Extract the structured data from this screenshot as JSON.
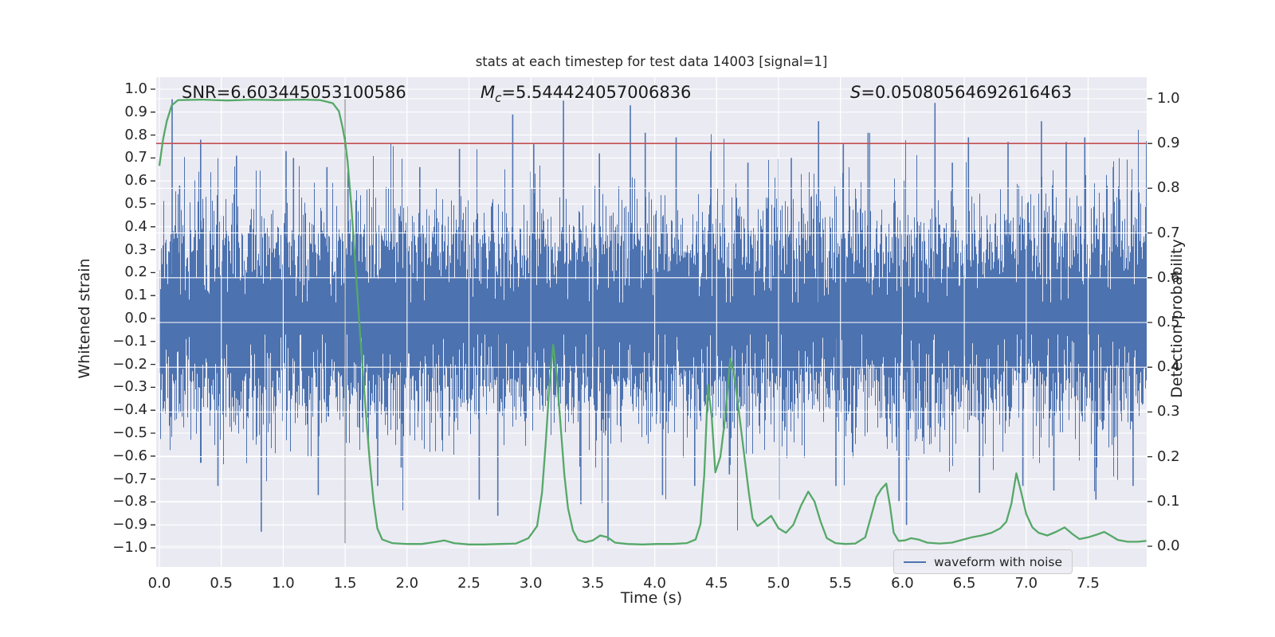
{
  "title": "stats at each timestep for test data 14003 [signal=1]",
  "annotations": {
    "snr": {
      "prefix": "SNR",
      "value": "=6.603445053100586"
    },
    "mc": {
      "prefix": "M",
      "sub": "c",
      "value": "=5.544424057006836"
    },
    "s": {
      "prefix": "S",
      "value": "=0.05080564692616463"
    }
  },
  "axes": {
    "xlabel": "Time (s)",
    "ylabel_left": "Whitened strain",
    "ylabel_right": "Detection probability",
    "xticks": [
      "0.0",
      "0.5",
      "1.0",
      "1.5",
      "2.0",
      "2.5",
      "3.0",
      "3.5",
      "4.0",
      "4.5",
      "5.0",
      "5.5",
      "6.0",
      "6.5",
      "7.0",
      "7.5"
    ],
    "yticks_left": [
      "1.0",
      "0.9",
      "0.8",
      "0.7",
      "0.6",
      "0.5",
      "0.4",
      "0.3",
      "0.2",
      "0.1",
      "0.0",
      "−0.1",
      "−0.2",
      "−0.3",
      "−0.4",
      "−0.5",
      "−0.6",
      "−0.7",
      "−0.8",
      "−0.9",
      "−1.0"
    ],
    "yticks_right": [
      "1.0",
      "0.9",
      "0.8",
      "0.7",
      "0.6",
      "0.5",
      "0.4",
      "0.3",
      "0.2",
      "0.1",
      "0.0"
    ]
  },
  "legend": {
    "label": "waveform with noise"
  },
  "colors": {
    "waveform": "#4c72b0",
    "probability": "#55a868",
    "threshold": "#c44e52",
    "event_marker": "#000000",
    "plot_bg": "#eaeaf2",
    "grid": "#ffffff",
    "text": "#262626"
  },
  "chart_data": {
    "type": "line",
    "title": "stats at each timestep for test data 14003 [signal=1]",
    "xlabel": "Time (s)",
    "ylabel_left": "Whitened strain",
    "ylabel_right": "Detection probability",
    "xlim": [
      -0.03,
      7.98
    ],
    "ylim_left": [
      -1.08,
      1.05
    ],
    "ylim_right": [
      -0.046,
      1.048
    ],
    "grid": true,
    "legend_position": "lower right",
    "xticks": [
      0,
      0.5,
      1,
      1.5,
      2,
      2.5,
      3,
      3.5,
      4,
      4.5,
      5,
      5.5,
      6,
      6.5,
      7,
      7.5
    ],
    "yticks_left": [
      1,
      0.9,
      0.8,
      0.7,
      0.6,
      0.5,
      0.4,
      0.3,
      0.2,
      0.1,
      0,
      -0.1,
      -0.2,
      -0.3,
      -0.4,
      -0.5,
      -0.6,
      -0.7,
      -0.8,
      -0.9,
      -1
    ],
    "yticks_right": [
      1,
      0.9,
      0.8,
      0.7,
      0.6,
      0.5,
      0.4,
      0.3,
      0.2,
      0.1,
      0
    ],
    "stats": {
      "SNR": 6.603445053100586,
      "Mc": 5.544424057006836,
      "S": 0.05080564692616463
    },
    "threshold_line": {
      "axis": "right",
      "value": 0.9
    },
    "event_line": {
      "x": 1.5,
      "y_span_left": [
        -0.98,
        0.96
      ]
    },
    "series": [
      {
        "name": "waveform with noise",
        "type": "noise_envelope",
        "axis": "left",
        "seed": 1337,
        "sigma": 0.22,
        "samples_per_column": 9,
        "t_start": 0.0,
        "t_end": 7.97,
        "clip": [
          -0.99,
          0.97
        ],
        "spikes": [
          [
            0.1,
            0.96
          ],
          [
            0.16,
            0.58
          ],
          [
            0.33,
            0.78
          ],
          [
            0.47,
            -0.73
          ],
          [
            0.62,
            0.71
          ],
          [
            0.82,
            -0.93
          ],
          [
            1.02,
            0.73
          ],
          [
            1.08,
            0.7
          ],
          [
            1.28,
            -0.77
          ],
          [
            1.35,
            0.66
          ],
          [
            1.52,
            0.64
          ],
          [
            1.76,
            -0.73
          ],
          [
            1.95,
            -0.65
          ],
          [
            2.1,
            0.66
          ],
          [
            2.42,
            0.74
          ],
          [
            2.58,
            -0.79
          ],
          [
            2.73,
            -0.86
          ],
          [
            2.85,
            0.89
          ],
          [
            3.02,
            0.76
          ],
          [
            3.26,
            0.95
          ],
          [
            3.4,
            -0.81
          ],
          [
            3.55,
            0.72
          ],
          [
            3.62,
            -0.97
          ],
          [
            3.8,
            0.93
          ],
          [
            3.92,
            0.81
          ],
          [
            4.06,
            -0.77
          ],
          [
            4.17,
            0.79
          ],
          [
            4.32,
            -0.73
          ],
          [
            4.45,
            0.73
          ],
          [
            4.6,
            -0.68
          ],
          [
            4.75,
            0.68
          ],
          [
            5.0,
            -0.79
          ],
          [
            5.1,
            0.7
          ],
          [
            5.32,
            0.86
          ],
          [
            5.46,
            -0.73
          ],
          [
            5.52,
            0.76
          ],
          [
            5.72,
            0.81
          ],
          [
            5.97,
            -0.8
          ],
          [
            6.03,
            -0.9
          ],
          [
            6.26,
            0.94
          ],
          [
            6.4,
            0.68
          ],
          [
            6.53,
            0.79
          ],
          [
            6.62,
            -0.76
          ],
          [
            6.85,
            0.77
          ],
          [
            6.97,
            -0.73
          ],
          [
            7.12,
            0.86
          ],
          [
            7.22,
            -0.75
          ],
          [
            7.32,
            0.77
          ],
          [
            7.47,
            0.79
          ],
          [
            7.56,
            -0.79
          ],
          [
            7.7,
            0.66
          ],
          [
            7.86,
            -0.73
          ]
        ]
      },
      {
        "name": "detection probability",
        "type": "line",
        "axis": "right",
        "points": [
          [
            0,
            0.85
          ],
          [
            0.03,
            0.91
          ],
          [
            0.06,
            0.95
          ],
          [
            0.1,
            0.985
          ],
          [
            0.15,
            0.997
          ],
          [
            0.35,
            0.998
          ],
          [
            0.55,
            0.996
          ],
          [
            0.75,
            0.998
          ],
          [
            0.95,
            0.997
          ],
          [
            1.15,
            0.998
          ],
          [
            1.3,
            0.997
          ],
          [
            1.4,
            0.99
          ],
          [
            1.45,
            0.972
          ],
          [
            1.48,
            0.935
          ],
          [
            1.5,
            0.905
          ],
          [
            1.52,
            0.86
          ],
          [
            1.55,
            0.76
          ],
          [
            1.58,
            0.64
          ],
          [
            1.61,
            0.52
          ],
          [
            1.64,
            0.4
          ],
          [
            1.67,
            0.29
          ],
          [
            1.7,
            0.185
          ],
          [
            1.73,
            0.1
          ],
          [
            1.76,
            0.04
          ],
          [
            1.8,
            0.015
          ],
          [
            1.88,
            0.007
          ],
          [
            2.0,
            0.005
          ],
          [
            2.12,
            0.005
          ],
          [
            2.22,
            0.009
          ],
          [
            2.3,
            0.013
          ],
          [
            2.38,
            0.007
          ],
          [
            2.5,
            0.004
          ],
          [
            2.62,
            0.004
          ],
          [
            2.75,
            0.005
          ],
          [
            2.88,
            0.006
          ],
          [
            2.98,
            0.018
          ],
          [
            3.05,
            0.045
          ],
          [
            3.09,
            0.12
          ],
          [
            3.12,
            0.23
          ],
          [
            3.15,
            0.36
          ],
          [
            3.18,
            0.45
          ],
          [
            3.21,
            0.38
          ],
          [
            3.24,
            0.27
          ],
          [
            3.27,
            0.16
          ],
          [
            3.3,
            0.085
          ],
          [
            3.34,
            0.035
          ],
          [
            3.38,
            0.014
          ],
          [
            3.44,
            0.009
          ],
          [
            3.5,
            0.013
          ],
          [
            3.56,
            0.024
          ],
          [
            3.62,
            0.02
          ],
          [
            3.68,
            0.008
          ],
          [
            3.78,
            0.005
          ],
          [
            3.9,
            0.004
          ],
          [
            4.02,
            0.005
          ],
          [
            4.14,
            0.005
          ],
          [
            4.26,
            0.007
          ],
          [
            4.33,
            0.015
          ],
          [
            4.37,
            0.05
          ],
          [
            4.4,
            0.16
          ],
          [
            4.43,
            0.36
          ],
          [
            4.46,
            0.29
          ],
          [
            4.49,
            0.165
          ],
          [
            4.53,
            0.2
          ],
          [
            4.57,
            0.29
          ],
          [
            4.61,
            0.42
          ],
          [
            4.64,
            0.385
          ],
          [
            4.68,
            0.3
          ],
          [
            4.72,
            0.21
          ],
          [
            4.76,
            0.12
          ],
          [
            4.79,
            0.062
          ],
          [
            4.83,
            0.045
          ],
          [
            4.88,
            0.055
          ],
          [
            4.94,
            0.068
          ],
          [
            5.0,
            0.04
          ],
          [
            5.06,
            0.03
          ],
          [
            5.12,
            0.048
          ],
          [
            5.18,
            0.09
          ],
          [
            5.24,
            0.122
          ],
          [
            5.29,
            0.1
          ],
          [
            5.34,
            0.055
          ],
          [
            5.39,
            0.018
          ],
          [
            5.46,
            0.007
          ],
          [
            5.54,
            0.005
          ],
          [
            5.62,
            0.006
          ],
          [
            5.7,
            0.02
          ],
          [
            5.75,
            0.07
          ],
          [
            5.79,
            0.11
          ],
          [
            5.83,
            0.128
          ],
          [
            5.87,
            0.14
          ],
          [
            5.9,
            0.09
          ],
          [
            5.93,
            0.03
          ],
          [
            5.97,
            0.012
          ],
          [
            6.02,
            0.013
          ],
          [
            6.07,
            0.018
          ],
          [
            6.13,
            0.015
          ],
          [
            6.2,
            0.008
          ],
          [
            6.3,
            0.006
          ],
          [
            6.4,
            0.008
          ],
          [
            6.48,
            0.014
          ],
          [
            6.56,
            0.02
          ],
          [
            6.64,
            0.024
          ],
          [
            6.72,
            0.03
          ],
          [
            6.79,
            0.04
          ],
          [
            6.84,
            0.055
          ],
          [
            6.88,
            0.095
          ],
          [
            6.92,
            0.163
          ],
          [
            6.96,
            0.12
          ],
          [
            7.0,
            0.072
          ],
          [
            7.05,
            0.042
          ],
          [
            7.1,
            0.03
          ],
          [
            7.17,
            0.024
          ],
          [
            7.24,
            0.032
          ],
          [
            7.31,
            0.042
          ],
          [
            7.37,
            0.028
          ],
          [
            7.43,
            0.016
          ],
          [
            7.5,
            0.02
          ],
          [
            7.57,
            0.026
          ],
          [
            7.63,
            0.032
          ],
          [
            7.68,
            0.024
          ],
          [
            7.74,
            0.014
          ],
          [
            7.82,
            0.01
          ],
          [
            7.9,
            0.01
          ],
          [
            7.97,
            0.012
          ]
        ]
      }
    ]
  }
}
